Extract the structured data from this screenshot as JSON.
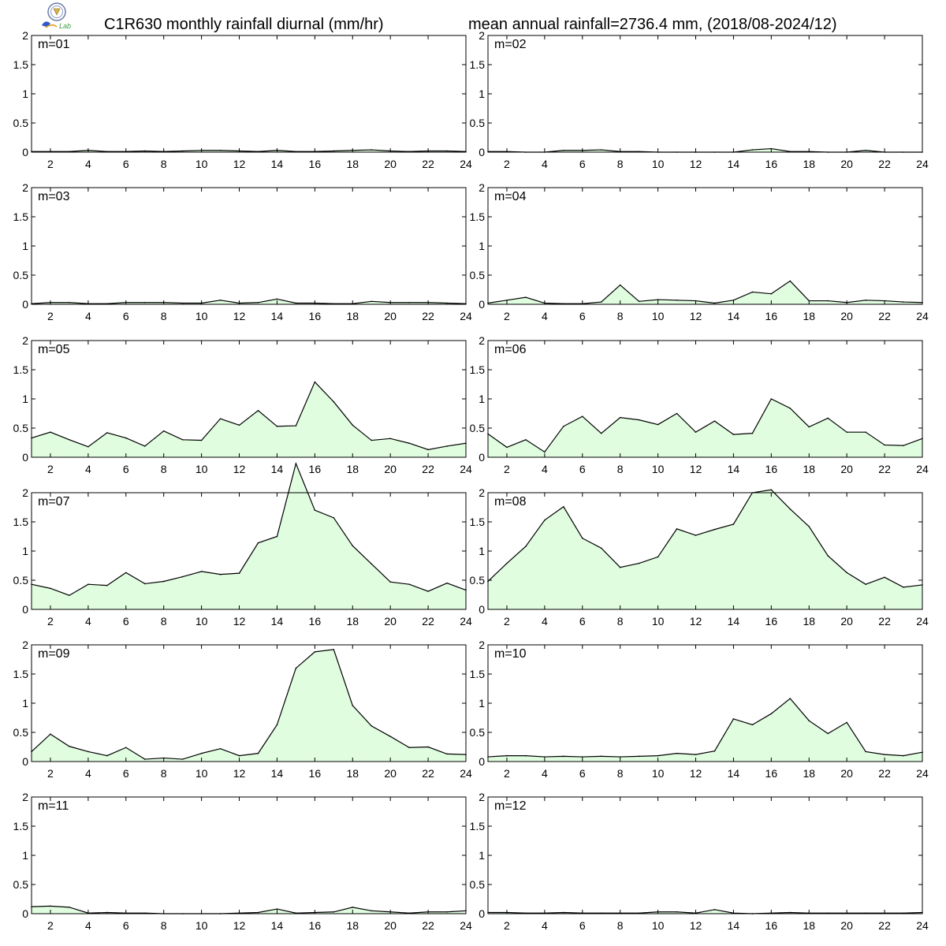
{
  "header": {
    "title_left": "C1R630 monthly rainfall diurnal (mm/hr)",
    "title_right": "mean annual rainfall=2736.4 mm, (2018/08-2024/12)",
    "logo_text": "Lab"
  },
  "colors": {
    "fill": "#e0fde0",
    "line": "#000000",
    "axis": "#000000"
  },
  "chart_data": {
    "type": "area",
    "layout": "6x2 small multiples",
    "x": [
      1,
      2,
      3,
      4,
      5,
      6,
      7,
      8,
      9,
      10,
      11,
      12,
      13,
      14,
      15,
      16,
      17,
      18,
      19,
      20,
      21,
      22,
      23,
      24
    ],
    "xlim": [
      1,
      24
    ],
    "ylim": [
      0,
      2
    ],
    "x_ticks": [
      2,
      4,
      6,
      8,
      10,
      12,
      14,
      16,
      18,
      20,
      22,
      24
    ],
    "y_ticks": [
      0,
      0.5,
      1,
      1.5,
      2
    ],
    "y_tick_labels": [
      "0",
      "0.5",
      "1",
      "1.5",
      "2"
    ],
    "series": [
      {
        "name": "m=01",
        "values": [
          0.01,
          0.01,
          0.01,
          0.03,
          0.01,
          0.01,
          0.02,
          0.01,
          0.02,
          0.03,
          0.03,
          0.02,
          0.01,
          0.03,
          0.01,
          0.01,
          0.02,
          0.03,
          0.04,
          0.02,
          0.01,
          0.02,
          0.02,
          0.01
        ]
      },
      {
        "name": "m=02",
        "values": [
          0.01,
          0.01,
          0.0,
          0.0,
          0.03,
          0.03,
          0.04,
          0.01,
          0.01,
          0.0,
          0.0,
          0.0,
          0.0,
          0.0,
          0.04,
          0.06,
          0.01,
          0.01,
          0.0,
          0.0,
          0.03,
          0.0,
          0.0,
          0.0
        ]
      },
      {
        "name": "m=03",
        "values": [
          0.01,
          0.03,
          0.03,
          0.01,
          0.01,
          0.03,
          0.03,
          0.03,
          0.02,
          0.02,
          0.07,
          0.02,
          0.03,
          0.09,
          0.02,
          0.02,
          0.01,
          0.01,
          0.05,
          0.03,
          0.03,
          0.03,
          0.02,
          0.01
        ]
      },
      {
        "name": "m=04",
        "values": [
          0.02,
          0.07,
          0.12,
          0.02,
          0.01,
          0.01,
          0.04,
          0.33,
          0.05,
          0.08,
          0.07,
          0.06,
          0.02,
          0.07,
          0.21,
          0.18,
          0.4,
          0.06,
          0.06,
          0.03,
          0.07,
          0.06,
          0.04,
          0.03
        ]
      },
      {
        "name": "m=05",
        "values": [
          0.33,
          0.43,
          0.3,
          0.18,
          0.42,
          0.33,
          0.19,
          0.45,
          0.3,
          0.29,
          0.66,
          0.55,
          0.8,
          0.53,
          0.54,
          1.29,
          0.95,
          0.55,
          0.29,
          0.32,
          0.24,
          0.13,
          0.19,
          0.24
        ]
      },
      {
        "name": "m=06",
        "values": [
          0.4,
          0.17,
          0.3,
          0.09,
          0.53,
          0.7,
          0.41,
          0.68,
          0.64,
          0.56,
          0.75,
          0.43,
          0.62,
          0.39,
          0.41,
          1.0,
          0.84,
          0.52,
          0.67,
          0.43,
          0.43,
          0.21,
          0.2,
          0.32
        ]
      },
      {
        "name": "m=07",
        "values": [
          0.43,
          0.36,
          0.24,
          0.43,
          0.41,
          0.63,
          0.44,
          0.48,
          0.56,
          0.65,
          0.6,
          0.62,
          1.14,
          1.25,
          2.5,
          1.7,
          1.57,
          1.09,
          0.78,
          0.47,
          0.43,
          0.31,
          0.45,
          0.33
        ]
      },
      {
        "name": "m=08",
        "values": [
          0.48,
          0.79,
          1.08,
          1.53,
          1.76,
          1.22,
          1.05,
          0.72,
          0.79,
          0.9,
          1.38,
          1.27,
          1.37,
          1.46,
          2.0,
          2.05,
          1.72,
          1.42,
          0.92,
          0.63,
          0.43,
          0.55,
          0.38,
          0.42
        ]
      },
      {
        "name": "m=09",
        "values": [
          0.17,
          0.47,
          0.26,
          0.17,
          0.1,
          0.24,
          0.04,
          0.06,
          0.04,
          0.14,
          0.22,
          0.1,
          0.14,
          0.63,
          1.6,
          1.88,
          1.92,
          0.96,
          0.61,
          0.43,
          0.24,
          0.25,
          0.13,
          0.12
        ]
      },
      {
        "name": "m=10",
        "values": [
          0.08,
          0.1,
          0.1,
          0.08,
          0.09,
          0.08,
          0.09,
          0.08,
          0.09,
          0.1,
          0.14,
          0.12,
          0.18,
          0.73,
          0.63,
          0.82,
          1.08,
          0.7,
          0.48,
          0.67,
          0.17,
          0.12,
          0.1,
          0.16
        ]
      },
      {
        "name": "m=11",
        "values": [
          0.12,
          0.13,
          0.11,
          0.01,
          0.02,
          0.01,
          0.01,
          0.0,
          0.0,
          0.0,
          0.0,
          0.01,
          0.02,
          0.08,
          0.01,
          0.02,
          0.03,
          0.11,
          0.05,
          0.03,
          0.01,
          0.03,
          0.03,
          0.05
        ]
      },
      {
        "name": "m=12",
        "values": [
          0.02,
          0.02,
          0.01,
          0.01,
          0.02,
          0.01,
          0.01,
          0.01,
          0.01,
          0.03,
          0.03,
          0.01,
          0.07,
          0.01,
          0.0,
          0.01,
          0.02,
          0.01,
          0.01,
          0.01,
          0.01,
          0.01,
          0.01,
          0.02
        ]
      }
    ]
  }
}
